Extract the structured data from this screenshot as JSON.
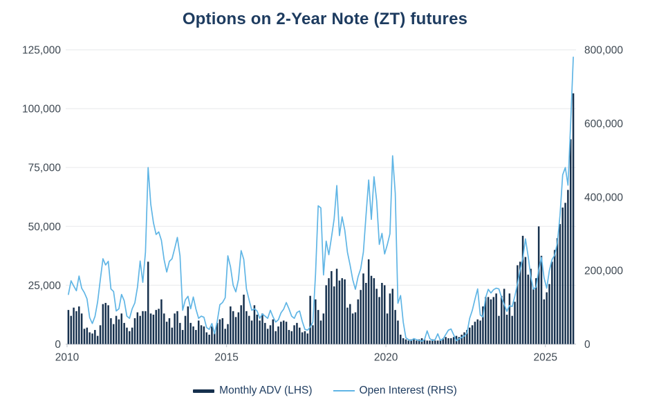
{
  "title": "Options on 2-Year Note (ZT) futures",
  "chart_data": {
    "type": "combo",
    "title": "Options on 2-Year Note (ZT) futures",
    "x": {
      "start": "2010-01",
      "frequency": "monthly",
      "n_months": 191,
      "start_year": 2010,
      "tick_years": [
        "2010",
        "2015",
        "2020",
        "2025"
      ]
    },
    "left_axis": {
      "min": 0,
      "max": 125000,
      "step": 25000,
      "tick_labels": [
        "0",
        "25,000",
        "50,000",
        "75,000",
        "100,000",
        "125,000"
      ]
    },
    "right_axis": {
      "min": 0,
      "max": 800000,
      "step": 200000,
      "tick_labels": [
        "0",
        "200,000",
        "400,000",
        "600,000",
        "800,000"
      ]
    },
    "grid": {
      "show": true,
      "color": "#ebecee",
      "axis_line_color": "#c7ccd1"
    },
    "legend_position": "bottom",
    "series": [
      {
        "name": "Monthly ADV (LHS)",
        "type": "bar",
        "axis": "left",
        "color": "#16304d",
        "values_by_year": [
          [
            14500,
            12000,
            15500,
            14000,
            16000,
            13000,
            6500,
            7000,
            5000,
            4500,
            6000,
            3500
          ],
          [
            8000,
            17000,
            17500,
            16500,
            11000,
            8500,
            12000,
            10500,
            13000,
            9000,
            7000,
            5500
          ],
          [
            7000,
            11000,
            13500,
            12000,
            14000,
            14000,
            35000,
            13000,
            12500,
            14500,
            15000,
            19000
          ],
          [
            13000,
            9500,
            11000,
            7000,
            13000,
            14000,
            9000,
            6000,
            12000,
            16000,
            9000,
            7500
          ],
          [
            6000,
            10000,
            8000,
            7500,
            5000,
            4000,
            7500,
            5500,
            9000,
            10500,
            11000,
            6500
          ],
          [
            8500,
            16000,
            14000,
            11500,
            13500,
            16500,
            21000,
            14000,
            12000,
            10000,
            16500,
            12500
          ],
          [
            10000,
            13000,
            9000,
            6500,
            8000,
            10500,
            5500,
            7500,
            9500,
            10000,
            9500,
            6000
          ],
          [
            5500,
            8000,
            9000,
            7000,
            5000,
            5500,
            4500,
            20500,
            8000,
            19000,
            14500,
            10000
          ],
          [
            13000,
            25000,
            28000,
            31000,
            24500,
            32000,
            27000,
            28000,
            27500,
            15500,
            17000,
            13000
          ],
          [
            13500,
            19000,
            23000,
            30000,
            26000,
            36000,
            29000,
            28000,
            23500,
            20000,
            26000,
            25000
          ],
          [
            13000,
            21500,
            23500,
            14500,
            10000,
            4000,
            2500,
            2000,
            1500,
            2000,
            2000,
            1500
          ],
          [
            2000,
            2500,
            2000,
            1500,
            1500,
            2000,
            1500,
            1500,
            2000,
            2500,
            3000,
            2500
          ],
          [
            2500,
            3000,
            3500,
            3000,
            4000,
            5000,
            6000,
            7000,
            8000,
            9500,
            10500,
            10000
          ],
          [
            16000,
            20000,
            20000,
            19000,
            20000,
            21500,
            12000,
            20500,
            23500,
            12500,
            21500,
            12000
          ],
          [
            18000,
            33500,
            35000,
            46000,
            37000,
            29500,
            32000,
            23500,
            28000,
            50000,
            37500,
            19000
          ],
          [
            22000,
            25500,
            35000,
            40000,
            45000,
            51000,
            58000,
            60000,
            65500,
            87000,
            106500
          ]
        ]
      },
      {
        "name": "Open Interest (RHS)",
        "type": "line",
        "axis": "right",
        "color": "#5fb5e5",
        "values_by_year": [
          [
            135000,
            172000,
            158000,
            145000,
            185000,
            152000,
            140000,
            123000,
            72000,
            56000,
            75000,
            115000
          ],
          [
            175000,
            232000,
            215000,
            225000,
            150000,
            143000,
            90000,
            96000,
            135000,
            118000,
            76000,
            70000
          ],
          [
            96000,
            112000,
            155000,
            226000,
            168000,
            250000,
            480000,
            380000,
            330000,
            298000,
            305000,
            282000
          ],
          [
            230000,
            196000,
            225000,
            232000,
            260000,
            290000,
            240000,
            92000,
            120000,
            130000,
            96000,
            128000
          ],
          [
            95000,
            70000,
            76000,
            73000,
            45000,
            40000,
            56000,
            28000,
            62000,
            107000,
            113000,
            126000
          ],
          [
            240000,
            210000,
            160000,
            142000,
            176000,
            254000,
            230000,
            150000,
            120000,
            92000,
            96000,
            90000
          ],
          [
            70000,
            82000,
            76000,
            70000,
            92000,
            74000,
            60000,
            66000,
            85000,
            95000,
            113000,
            96000
          ],
          [
            76000,
            70000,
            86000,
            90000,
            62000,
            40000,
            38000,
            46000,
            60000,
            190000,
            376000,
            370000
          ],
          [
            188000,
            280000,
            243000,
            290000,
            340000,
            431000,
            295000,
            346000,
            310000,
            250000,
            215000,
            175000
          ],
          [
            149000,
            183000,
            205000,
            250000,
            350000,
            446000,
            339000,
            455000,
            390000,
            271000,
            301000,
            245000
          ],
          [
            270000,
            300000,
            512000,
            410000,
            111000,
            132000,
            60000,
            17000,
            12000,
            10000,
            15000,
            12000
          ],
          [
            10000,
            8000,
            12000,
            36000,
            15000,
            10000,
            12000,
            28000,
            10000,
            14000,
            26000,
            38000
          ],
          [
            41000,
            25000,
            9000,
            14000,
            18000,
            22000,
            30000,
            70000,
            92000,
            122000,
            150000,
            79000
          ],
          [
            74000,
            126000,
            149000,
            139000,
            148000,
            152000,
            150000,
            127000,
            108000,
            89000,
            105000,
            102000
          ],
          [
            130000,
            164000,
            202000,
            233000,
            286000,
            239000,
            183000,
            149000,
            155000,
            202000,
            236000,
            180000
          ],
          [
            152000,
            200000,
            230000,
            242000,
            275000,
            350000,
            460000,
            480000,
            432000,
            600000,
            780000
          ]
        ]
      }
    ]
  }
}
